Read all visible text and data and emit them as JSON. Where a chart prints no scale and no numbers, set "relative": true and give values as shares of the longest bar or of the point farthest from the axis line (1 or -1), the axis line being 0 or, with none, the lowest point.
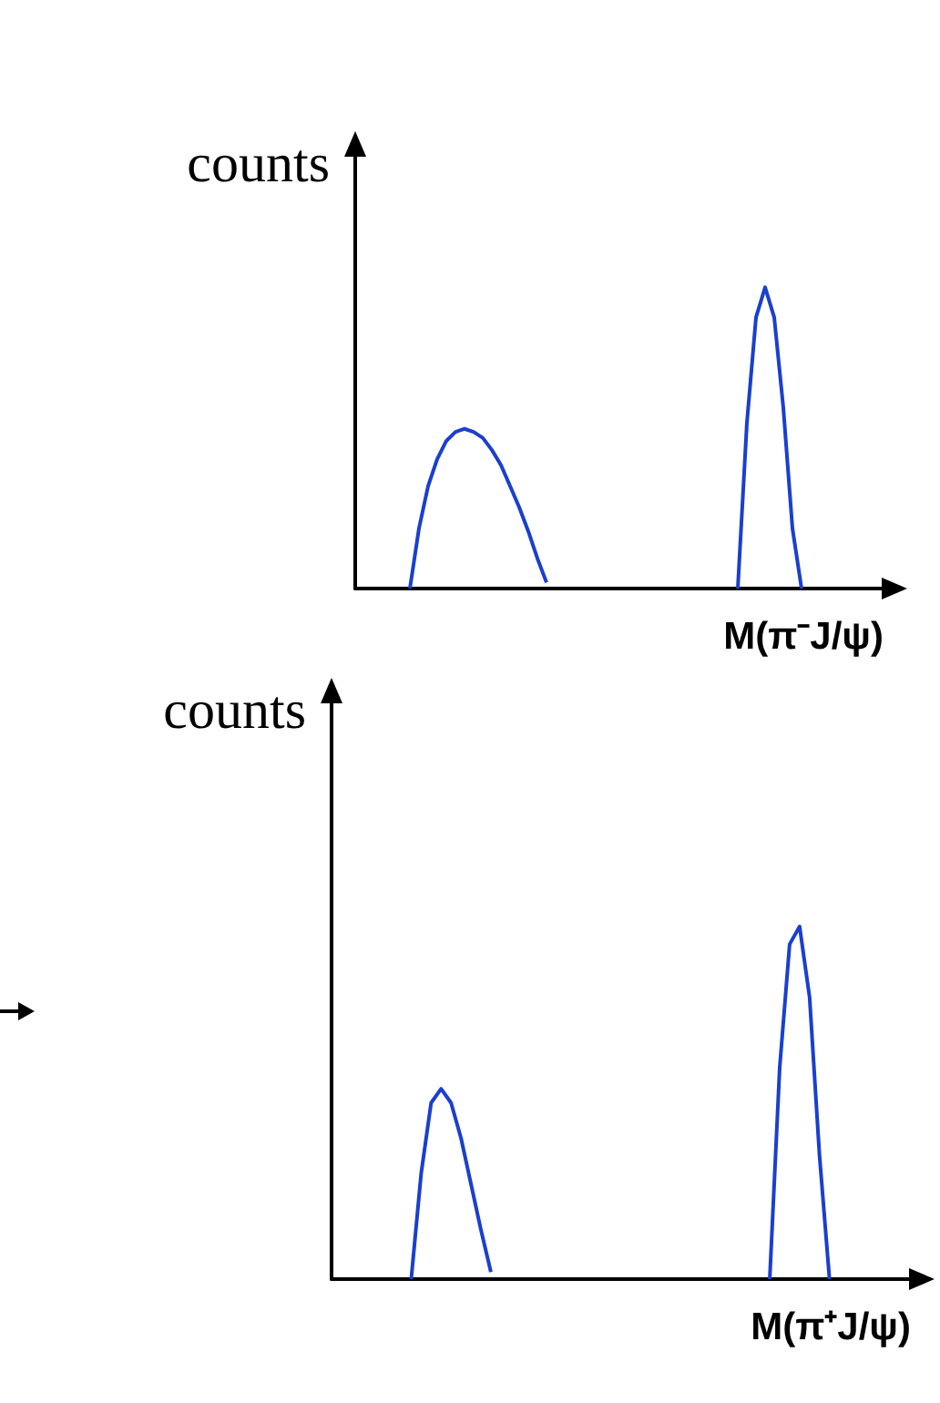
{
  "chart_data": [
    {
      "type": "line",
      "relative": true,
      "ylabel": "counts",
      "xlabel": "M(π⁻J/ψ)",
      "grid": false,
      "line_style": "solid",
      "categories": [
        null,
        null,
        null,
        null,
        null,
        null,
        null,
        null,
        null,
        null,
        null,
        null,
        null,
        null,
        null,
        null,
        null,
        null,
        null,
        null,
        null,
        null,
        null,
        null,
        null,
        null,
        null,
        null,
        null,
        null,
        null,
        null,
        null,
        null,
        null,
        null,
        null,
        null,
        null,
        null,
        null,
        null,
        null,
        null,
        null,
        null,
        null,
        null,
        null,
        null,
        null,
        null,
        null,
        null,
        null,
        null,
        null,
        null,
        null,
        null,
        null
      ],
      "series": [
        {
          "color": "#1a3fd0",
          "values": [
            null,
            null,
            null,
            null,
            null,
            null,
            0,
            0.2,
            0.34,
            0.43,
            0.49,
            0.52,
            0.53,
            0.52,
            0.5,
            0.46,
            0.41,
            0.34,
            0.27,
            0.19,
            0.1,
            0.02,
            null,
            null,
            null,
            null,
            null,
            null,
            null,
            null,
            null,
            null,
            null,
            null,
            null,
            null,
            null,
            null,
            null,
            null,
            null,
            null,
            null,
            null,
            null,
            null,
            null,
            null,
            null,
            null,
            null,
            null,
            null,
            null,
            null,
            null,
            null,
            null,
            null,
            null,
            null
          ]
        },
        {
          "color": "#1a3fd0",
          "values": [
            null,
            null,
            null,
            null,
            null,
            null,
            null,
            null,
            null,
            null,
            null,
            null,
            null,
            null,
            null,
            null,
            null,
            null,
            null,
            null,
            null,
            null,
            null,
            null,
            null,
            null,
            null,
            null,
            null,
            null,
            null,
            null,
            null,
            null,
            null,
            null,
            null,
            null,
            null,
            null,
            null,
            null,
            0,
            0.55,
            0.9,
            1,
            0.9,
            0.6,
            0.2,
            0,
            null,
            null,
            null,
            null,
            null,
            null,
            null,
            null,
            null,
            null,
            null
          ]
        }
      ]
    },
    {
      "type": "line",
      "relative": true,
      "ylabel": "counts",
      "xlabel": "M(π⁺J/ψ)",
      "grid": false,
      "line_style": "solid",
      "categories": [
        null,
        null,
        null,
        null,
        null,
        null,
        null,
        null,
        null,
        null,
        null,
        null,
        null,
        null,
        null,
        null,
        null,
        null,
        null,
        null,
        null,
        null,
        null,
        null,
        null,
        null,
        null,
        null,
        null,
        null,
        null,
        null,
        null,
        null,
        null,
        null,
        null,
        null,
        null,
        null,
        null,
        null,
        null,
        null,
        null,
        null,
        null,
        null,
        null,
        null,
        null,
        null,
        null,
        null,
        null,
        null,
        null,
        null,
        null,
        null,
        null
      ],
      "series": [
        {
          "color": "#1a3fd0",
          "values": [
            null,
            null,
            null,
            null,
            null,
            null,
            null,
            null,
            0,
            0.3,
            0.5,
            0.54,
            0.5,
            0.4,
            0.27,
            0.14,
            0.02,
            null,
            null,
            null,
            null,
            null,
            null,
            null,
            null,
            null,
            null,
            null,
            null,
            null,
            null,
            null,
            null,
            null,
            null,
            null,
            null,
            null,
            null,
            null,
            null,
            null,
            null,
            null,
            null,
            null,
            null,
            null,
            null,
            null,
            null,
            null,
            null,
            null,
            null,
            null,
            null,
            null,
            null,
            null,
            null
          ]
        },
        {
          "color": "#1a3fd0",
          "values": [
            null,
            null,
            null,
            null,
            null,
            null,
            null,
            null,
            null,
            null,
            null,
            null,
            null,
            null,
            null,
            null,
            null,
            null,
            null,
            null,
            null,
            null,
            null,
            null,
            null,
            null,
            null,
            null,
            null,
            null,
            null,
            null,
            null,
            null,
            null,
            null,
            null,
            null,
            null,
            null,
            null,
            null,
            null,
            null,
            0,
            0.6,
            0.95,
            1,
            0.8,
            0.35,
            0,
            null,
            null,
            null,
            null,
            null,
            null,
            null,
            null,
            null,
            null
          ]
        }
      ]
    }
  ]
}
